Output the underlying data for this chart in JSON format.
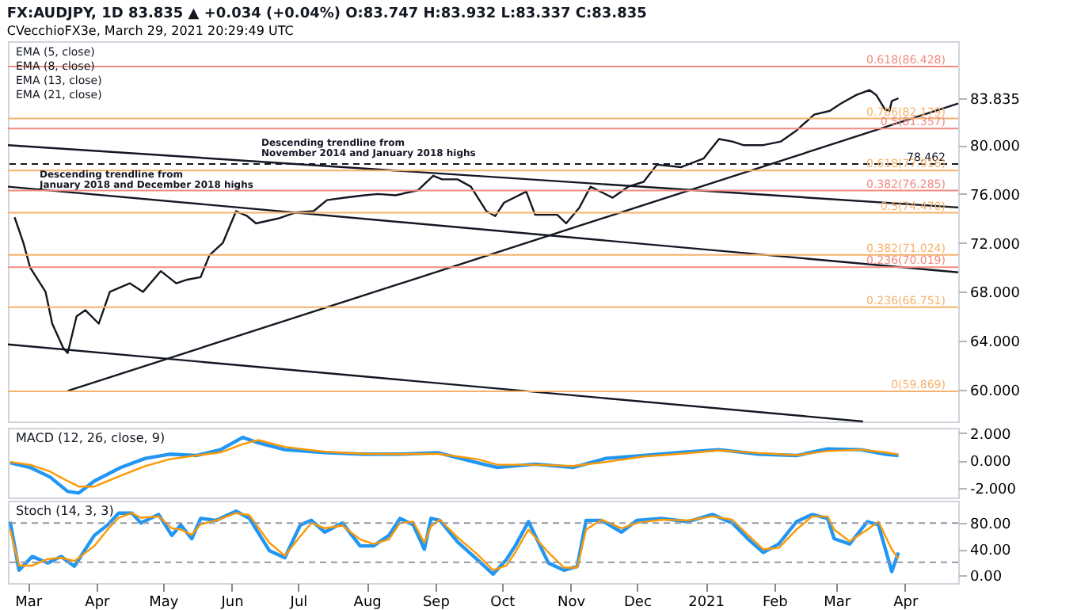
{
  "chart_data": [
    {
      "type": "line",
      "title": "FX:AUDJPY, 1D 83.835 ▲ +0.034 (+0.04%) O:83.747 H:83.932 L:83.337 C:83.835",
      "subtitle": "CVecchioFX3e, March 29, 2021 20:29:49 UTC",
      "annotations": [
        "EMA (5, close)",
        "EMA (8, close)",
        "EMA (13, close)",
        "EMA (21, close)",
        "Descending trendline from\nJanuary 2018 and December 2018 highs",
        "Descending trendline from\nNovember 2014 and January 2018 highs"
      ],
      "xlim": [
        "2020-02-21",
        "2021-04-25"
      ],
      "ylim": [
        57.4,
        88.5
      ],
      "yticks": [
        {
          "value": 60,
          "label": "60.000"
        },
        {
          "value": 64,
          "label": "64.000"
        },
        {
          "value": 68,
          "label": "68.000"
        },
        {
          "value": 72,
          "label": "72.000"
        },
        {
          "value": 76,
          "label": "76.000"
        },
        {
          "value": 80,
          "label": "80.000"
        },
        {
          "value": 83.835,
          "label": "83.835"
        }
      ],
      "tick_labels": "y",
      "grid": false,
      "series": [
        {
          "color": "#131722",
          "x": [
            "2020-02-24",
            "2020-02-28",
            "2020-03-02",
            "2020-03-09",
            "2020-03-12",
            "2020-03-17",
            "2020-03-19",
            "2020-03-23",
            "2020-03-27",
            "2020-04-02",
            "2020-04-07",
            "2020-04-16",
            "2020-04-22",
            "2020-04-30",
            "2020-05-07",
            "2020-05-12",
            "2020-05-18",
            "2020-05-22",
            "2020-05-28",
            "2020-06-03",
            "2020-06-08",
            "2020-06-12",
            "2020-06-22",
            "2020-06-30",
            "2020-07-08",
            "2020-07-14",
            "2020-07-22",
            "2020-07-31",
            "2020-08-06",
            "2020-08-14",
            "2020-08-24",
            "2020-08-31",
            "2020-09-04",
            "2020-09-11",
            "2020-09-17",
            "2020-09-24",
            "2020-09-28",
            "2020-10-02",
            "2020-10-12",
            "2020-10-16",
            "2020-10-26",
            "2020-10-30",
            "2020-11-05",
            "2020-11-10",
            "2020-11-20",
            "2020-11-27",
            "2020-12-04",
            "2020-12-10",
            "2020-12-21",
            "2020-12-31",
            "2021-01-07",
            "2021-01-13",
            "2021-01-18",
            "2021-01-27",
            "2021-02-04",
            "2021-02-11",
            "2021-02-19",
            "2021-02-26",
            "2021-03-03",
            "2021-03-10",
            "2021-03-16",
            "2021-03-19",
            "2021-03-23",
            "2021-03-25",
            "2021-03-26",
            "2021-03-29"
          ],
          "values": [
            74.1,
            72.0,
            70.0,
            68.0,
            65.4,
            63.4,
            63.0,
            66.0,
            66.5,
            65.4,
            68.0,
            68.7,
            68.0,
            69.7,
            68.7,
            69.0,
            69.2,
            71.0,
            72.0,
            74.6,
            74.2,
            73.6,
            74.0,
            74.5,
            74.6,
            75.5,
            75.7,
            75.9,
            76.0,
            75.9,
            76.3,
            77.5,
            77.2,
            77.2,
            76.6,
            74.6,
            74.2,
            75.3,
            76.2,
            74.3,
            74.3,
            73.6,
            74.9,
            76.6,
            75.7,
            76.6,
            77.0,
            78.4,
            78.2,
            78.9,
            80.5,
            80.3,
            80.0,
            80.0,
            80.3,
            81.2,
            82.5,
            82.8,
            83.4,
            84.1,
            84.5,
            84.1,
            82.9,
            82.8,
            83.6,
            83.835
          ]
        },
        {
          "color": "#131722",
          "x": [
            "2020-03-19",
            "2021-04-25"
          ],
          "values": [
            59.9,
            83.4
          ]
        },
        {
          "color": "#131722",
          "x": [
            "2020-02-21",
            "2021-04-25"
          ],
          "values": [
            80.0,
            74.9
          ]
        },
        {
          "color": "#131722",
          "x": [
            "2020-02-21",
            "2021-04-25"
          ],
          "values": [
            76.6,
            69.6
          ]
        },
        {
          "color": "#131722",
          "x": [
            "2020-02-21",
            "2021-03-13"
          ],
          "values": [
            63.7,
            57.4
          ]
        }
      ],
      "ref_lines": [
        {
          "axis": "y",
          "value": 86.428,
          "label": "0.618(86.428)",
          "color": "#f28b82"
        },
        {
          "axis": "y",
          "value": 82.179,
          "label": "0.786(82.179)",
          "color": "#f6b26b"
        },
        {
          "axis": "y",
          "value": 81.357,
          "label": "0.5(81.357)",
          "color": "#f28b82"
        },
        {
          "axis": "y",
          "value": 78.462,
          "label": "78.462",
          "color": "#131722",
          "line_style": "dashed"
        },
        {
          "axis": "y",
          "value": 77.916,
          "label": "0.618(77.916)",
          "color": "#f6b26b"
        },
        {
          "axis": "y",
          "value": 76.285,
          "label": "0.382(76.285)",
          "color": "#f28b82"
        },
        {
          "axis": "y",
          "value": 74.47,
          "label": "0.5(74.470)",
          "color": "#f6b26b"
        },
        {
          "axis": "y",
          "value": 71.024,
          "label": "0.382(71.024)",
          "color": "#f6b26b"
        },
        {
          "axis": "y",
          "value": 70.019,
          "label": "0.236(70.019)",
          "color": "#f28b82"
        },
        {
          "axis": "y",
          "value": 66.751,
          "label": "0.236(66.751)",
          "color": "#f6b26b"
        },
        {
          "axis": "y",
          "value": 59.869,
          "label": "0(59.869)",
          "color": "#f6b26b"
        }
      ]
    },
    {
      "type": "line",
      "title": "MACD (12, 26, close, 9)",
      "xlim": [
        "2020-02-21",
        "2021-04-25"
      ],
      "ylim": [
        -2.7,
        2.4
      ],
      "yticks": [
        {
          "value": -2,
          "label": "-2.000"
        },
        {
          "value": 0,
          "label": "0.000"
        },
        {
          "value": 2,
          "label": "2.000"
        }
      ],
      "tick_labels": "y",
      "grid": false,
      "x": [
        "2020-02-22",
        "2020-03-02",
        "2020-03-11",
        "2020-03-19",
        "2020-03-24",
        "2020-03-31",
        "2020-04-12",
        "2020-04-23",
        "2020-05-04",
        "2020-05-16",
        "2020-05-27",
        "2020-06-06",
        "2020-06-13",
        "2020-06-25",
        "2020-07-13",
        "2020-07-30",
        "2020-08-16",
        "2020-09-02",
        "2020-09-20",
        "2020-09-29",
        "2020-10-16",
        "2020-11-02",
        "2020-11-17",
        "2020-12-04",
        "2020-12-21",
        "2021-01-07",
        "2021-01-25",
        "2021-02-11",
        "2021-02-25",
        "2021-03-12",
        "2021-03-23",
        "2021-03-29"
      ],
      "series": [
        {
          "color": "#2196f3",
          "values": [
            -0.16,
            -0.5,
            -1.2,
            -2.26,
            -2.37,
            -1.5,
            -0.5,
            0.16,
            0.47,
            0.37,
            0.8,
            1.7,
            1.3,
            0.8,
            0.58,
            0.47,
            0.47,
            0.58,
            -0.16,
            -0.5,
            -0.26,
            -0.5,
            0.16,
            0.37,
            0.6,
            0.8,
            0.47,
            0.37,
            0.85,
            0.8,
            0.47,
            0.37
          ]
        },
        {
          "color": "#ff9800",
          "values": [
            -0.1,
            -0.3,
            -0.8,
            -1.5,
            -1.9,
            -1.9,
            -1.1,
            -0.4,
            0.1,
            0.37,
            0.6,
            1.2,
            1.5,
            1.0,
            0.65,
            0.5,
            0.47,
            0.5,
            0.1,
            -0.3,
            -0.3,
            -0.4,
            -0.1,
            0.3,
            0.5,
            0.75,
            0.55,
            0.4,
            0.7,
            0.8,
            0.6,
            0.45
          ]
        }
      ]
    },
    {
      "type": "line",
      "title": "Stoch (14, 3, 3)",
      "xlim": [
        "2020-02-21",
        "2021-04-25"
      ],
      "ylim": [
        -11.6,
        114
      ],
      "xticks": [
        {
          "value": "2020-03-01",
          "label": "Mar"
        },
        {
          "value": "2020-04-01",
          "label": "Apr"
        },
        {
          "value": "2020-05-01",
          "label": "May"
        },
        {
          "value": "2020-06-01",
          "label": "Jun"
        },
        {
          "value": "2020-07-01",
          "label": "Jul"
        },
        {
          "value": "2020-08-01",
          "label": "Aug"
        },
        {
          "value": "2020-09-01",
          "label": "Sep"
        },
        {
          "value": "2020-10-01",
          "label": "Oct"
        },
        {
          "value": "2020-11-01",
          "label": "Nov"
        },
        {
          "value": "2020-12-01",
          "label": "Dec"
        },
        {
          "value": "2021-01-01",
          "label": "2021"
        },
        {
          "value": "2021-02-01",
          "label": "Feb"
        },
        {
          "value": "2021-03-01",
          "label": "Mar"
        },
        {
          "value": "2021-04-01",
          "label": "Apr"
        }
      ],
      "yticks": [
        {
          "value": 0,
          "label": "0.00"
        },
        {
          "value": 40,
          "label": "40.00"
        },
        {
          "value": 80,
          "label": "80.00"
        }
      ],
      "grid": false,
      "ref_lines": [
        {
          "axis": "y",
          "value": 80,
          "label": null,
          "color": "#9598a1",
          "line_style": "dashed"
        },
        {
          "axis": "y",
          "value": 20,
          "label": null,
          "color": "#9598a1",
          "line_style": "dashed"
        }
      ],
      "x": [
        "2020-02-22",
        "2020-02-26",
        "2020-03-03",
        "2020-03-10",
        "2020-03-16",
        "2020-03-22",
        "2020-03-31",
        "2020-04-06",
        "2020-04-11",
        "2020-04-17",
        "2020-04-21",
        "2020-04-29",
        "2020-05-05",
        "2020-05-09",
        "2020-05-14",
        "2020-05-18",
        "2020-05-25",
        "2020-06-03",
        "2020-06-09",
        "2020-06-18",
        "2020-06-25",
        "2020-07-02",
        "2020-07-07",
        "2020-07-13",
        "2020-07-21",
        "2020-07-29",
        "2020-08-04",
        "2020-08-11",
        "2020-08-16",
        "2020-08-22",
        "2020-08-27",
        "2020-08-30",
        "2020-09-03",
        "2020-09-11",
        "2020-09-20",
        "2020-09-27",
        "2020-10-03",
        "2020-10-07",
        "2020-10-13",
        "2020-10-22",
        "2020-10-29",
        "2020-11-04",
        "2020-11-08",
        "2020-11-15",
        "2020-11-24",
        "2020-12-01",
        "2020-12-12",
        "2020-12-24",
        "2021-01-04",
        "2021-01-13",
        "2021-01-20",
        "2021-01-27",
        "2021-02-03",
        "2021-02-11",
        "2021-02-18",
        "2021-02-25",
        "2021-02-28",
        "2021-03-07",
        "2021-03-15",
        "2021-03-20",
        "2021-03-26",
        "2021-03-29"
      ],
      "series": [
        {
          "color": "#2196f3",
          "values": [
            82,
            8,
            29,
            19,
            29,
            14,
            61,
            77,
            95,
            95,
            80,
            93,
            61,
            77,
            56,
            87,
            84,
            98,
            87,
            38,
            27,
            77,
            84,
            66,
            80,
            45,
            45,
            61,
            87,
            77,
            40,
            87,
            84,
            51,
            24,
            2,
            24,
            45,
            82,
            19,
            8,
            14,
            84,
            84,
            66,
            84,
            87,
            82,
            93,
            80,
            56,
            35,
            48,
            82,
            93,
            87,
            56,
            48,
            82,
            77,
            6,
            35
          ]
        },
        {
          "color": "#ff9800",
          "values": [
            70,
            15,
            15,
            25,
            27,
            22,
            45,
            70,
            88,
            95,
            88,
            90,
            72,
            70,
            62,
            78,
            84,
            95,
            92,
            50,
            30,
            60,
            80,
            72,
            76,
            55,
            48,
            55,
            80,
            82,
            50,
            75,
            85,
            58,
            32,
            8,
            15,
            35,
            70,
            35,
            12,
            12,
            70,
            85,
            72,
            80,
            85,
            84,
            90,
            85,
            62,
            40,
            42,
            70,
            90,
            90,
            70,
            52,
            70,
            82,
            40,
            25
          ]
        }
      ]
    }
  ]
}
